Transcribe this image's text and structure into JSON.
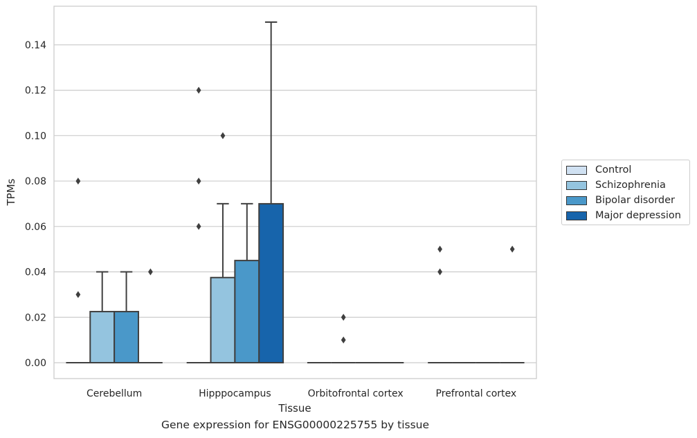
{
  "chart_data": {
    "type": "box",
    "xlabel": "Tissue",
    "ylabel": "TPMs",
    "caption": "Gene expression for ENSG00000225755 by tissue",
    "categories": [
      "Cerebellum",
      "Hipppocampus",
      "Orbitofrontal cortex",
      "Prefrontal cortex"
    ],
    "ylim": [
      -0.007,
      0.157
    ],
    "yticks": [
      "0.00",
      "0.02",
      "0.04",
      "0.06",
      "0.08",
      "0.10",
      "0.12",
      "0.14"
    ],
    "grid": true,
    "legend_position": "right",
    "series": [
      {
        "name": "Control",
        "color": "#d0e1f2",
        "boxes": [
          {
            "min": 0,
            "q1": 0,
            "median": 0,
            "q3": 0,
            "max": 0,
            "outliers": [
              0.03,
              0.08
            ]
          },
          {
            "min": 0,
            "q1": 0,
            "median": 0,
            "q3": 0,
            "max": 0,
            "outliers": [
              0.06,
              0.08,
              0.12
            ]
          },
          {
            "min": 0,
            "q1": 0,
            "median": 0,
            "q3": 0,
            "max": 0,
            "outliers": []
          },
          {
            "min": 0,
            "q1": 0,
            "median": 0,
            "q3": 0,
            "max": 0,
            "outliers": [
              0.04,
              0.05
            ]
          }
        ]
      },
      {
        "name": "Schizophrenia",
        "color": "#94c4df",
        "boxes": [
          {
            "min": 0,
            "q1": 0,
            "median": 0,
            "q3": 0.0225,
            "max": 0.04,
            "outliers": []
          },
          {
            "min": 0,
            "q1": 0,
            "median": 0,
            "q3": 0.0375,
            "max": 0.07,
            "outliers": [
              0.1
            ]
          },
          {
            "min": 0,
            "q1": 0,
            "median": 0,
            "q3": 0,
            "max": 0,
            "outliers": [
              0.01,
              0.02
            ]
          },
          {
            "min": 0,
            "q1": 0,
            "median": 0,
            "q3": 0,
            "max": 0,
            "outliers": []
          }
        ]
      },
      {
        "name": "Bipolar disorder",
        "color": "#4a98c9",
        "boxes": [
          {
            "min": 0,
            "q1": 0,
            "median": 0,
            "q3": 0.0225,
            "max": 0.04,
            "outliers": []
          },
          {
            "min": 0,
            "q1": 0,
            "median": 0,
            "q3": 0.045,
            "max": 0.07,
            "outliers": []
          },
          {
            "min": 0,
            "q1": 0,
            "median": 0,
            "q3": 0,
            "max": 0,
            "outliers": []
          },
          {
            "min": 0,
            "q1": 0,
            "median": 0,
            "q3": 0,
            "max": 0,
            "outliers": []
          }
        ]
      },
      {
        "name": "Major depression",
        "color": "#1764ab",
        "boxes": [
          {
            "min": 0,
            "q1": 0,
            "median": 0,
            "q3": 0,
            "max": 0,
            "outliers": [
              0.04
            ]
          },
          {
            "min": 0,
            "q1": 0,
            "median": 0,
            "q3": 0.07,
            "max": 0.15,
            "outliers": []
          },
          {
            "min": 0,
            "q1": 0,
            "median": 0,
            "q3": 0,
            "max": 0,
            "outliers": []
          },
          {
            "min": 0,
            "q1": 0,
            "median": 0,
            "q3": 0,
            "max": 0,
            "outliers": [
              0.05
            ]
          }
        ]
      }
    ]
  }
}
